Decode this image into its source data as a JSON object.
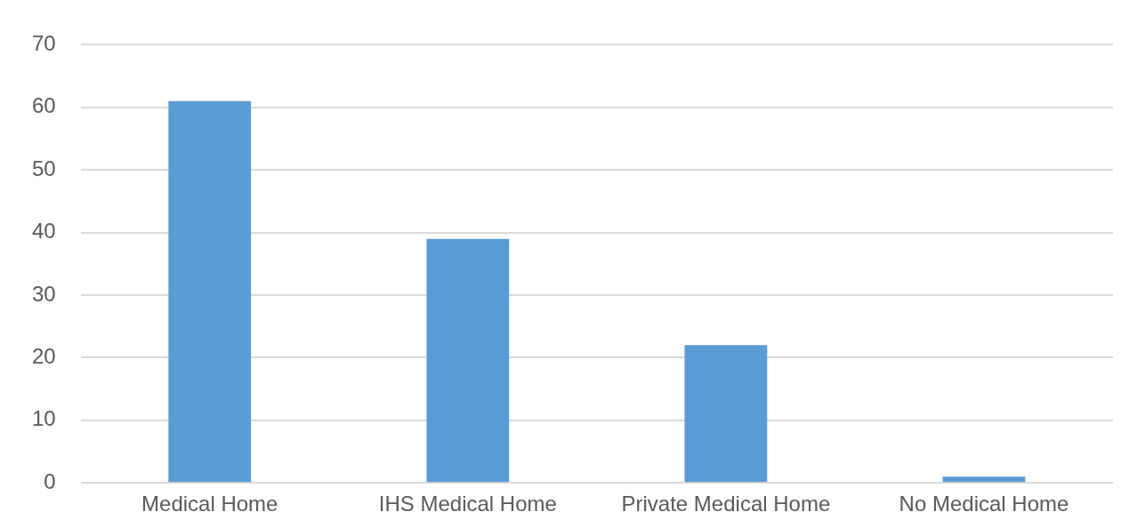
{
  "chart_data": {
    "type": "bar",
    "categories": [
      "Medical Home",
      "IHS Medical Home",
      "Private Medical Home",
      "No Medical Home"
    ],
    "values": [
      61,
      39,
      22,
      1
    ],
    "color": "#5b9bd5",
    "ylim": [
      0,
      70
    ],
    "yticks": [
      0,
      10,
      20,
      30,
      40,
      50,
      60,
      70
    ],
    "grid": "y",
    "legend": false
  }
}
